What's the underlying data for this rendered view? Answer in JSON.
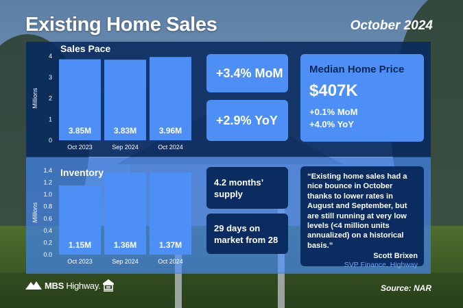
{
  "header": {
    "title": "Existing Home Sales",
    "date": "October 2024"
  },
  "sales_pace": {
    "label": "Sales Pace",
    "mom": "+3.4% MoM",
    "yoy": "+2.9% YoY"
  },
  "median_price": {
    "label": "Median Home Price",
    "value": "$407K",
    "mom": "+0.1% MoM",
    "yoy": "+4.0% YoY"
  },
  "inventory": {
    "label": "Inventory",
    "supply": "4.2 months’ supply",
    "days": "29 days on market from 28"
  },
  "quote": {
    "text": "“Existing home sales had a nice bounce in October thanks to lower rates in August and September, but are still running at very low levels (<4 million units annualized) on a historical basis.”",
    "name": "Scott Brixen",
    "role": "SVP Finance, Highway"
  },
  "footer": {
    "logo_main": "MBS",
    "logo_sub": "Highway.",
    "source": "Source: NAR"
  },
  "colors": {
    "bar": "#4e8ff5",
    "dark_panel": "#08295f",
    "accent_blue": "#6fa8ff"
  },
  "chart_data": [
    {
      "type": "bar",
      "title": "Sales Pace",
      "categories": [
        "Oct 2023",
        "Sep 2024",
        "Oct 2024"
      ],
      "values": [
        3.85,
        3.83,
        3.96
      ],
      "data_labels": [
        "3.85M",
        "3.83M",
        "3.96M"
      ],
      "ylabel": "Millions",
      "ylim": [
        0,
        4
      ],
      "yticks": [
        "0",
        "1",
        "2",
        "3",
        "4"
      ],
      "grid": false
    },
    {
      "type": "bar",
      "title": "Inventory",
      "categories": [
        "Oct 2023",
        "Sep 2024",
        "Oct 2024"
      ],
      "values": [
        1.15,
        1.36,
        1.37
      ],
      "data_labels": [
        "1.15M",
        "1.36M",
        "1.37M"
      ],
      "ylabel": "Millions",
      "ylim": [
        0,
        1.4
      ],
      "yticks": [
        "0.0",
        "0.2",
        "0.4",
        "0.6",
        "0.8",
        "1.0",
        "1.2",
        "1.4"
      ],
      "grid": false
    }
  ]
}
